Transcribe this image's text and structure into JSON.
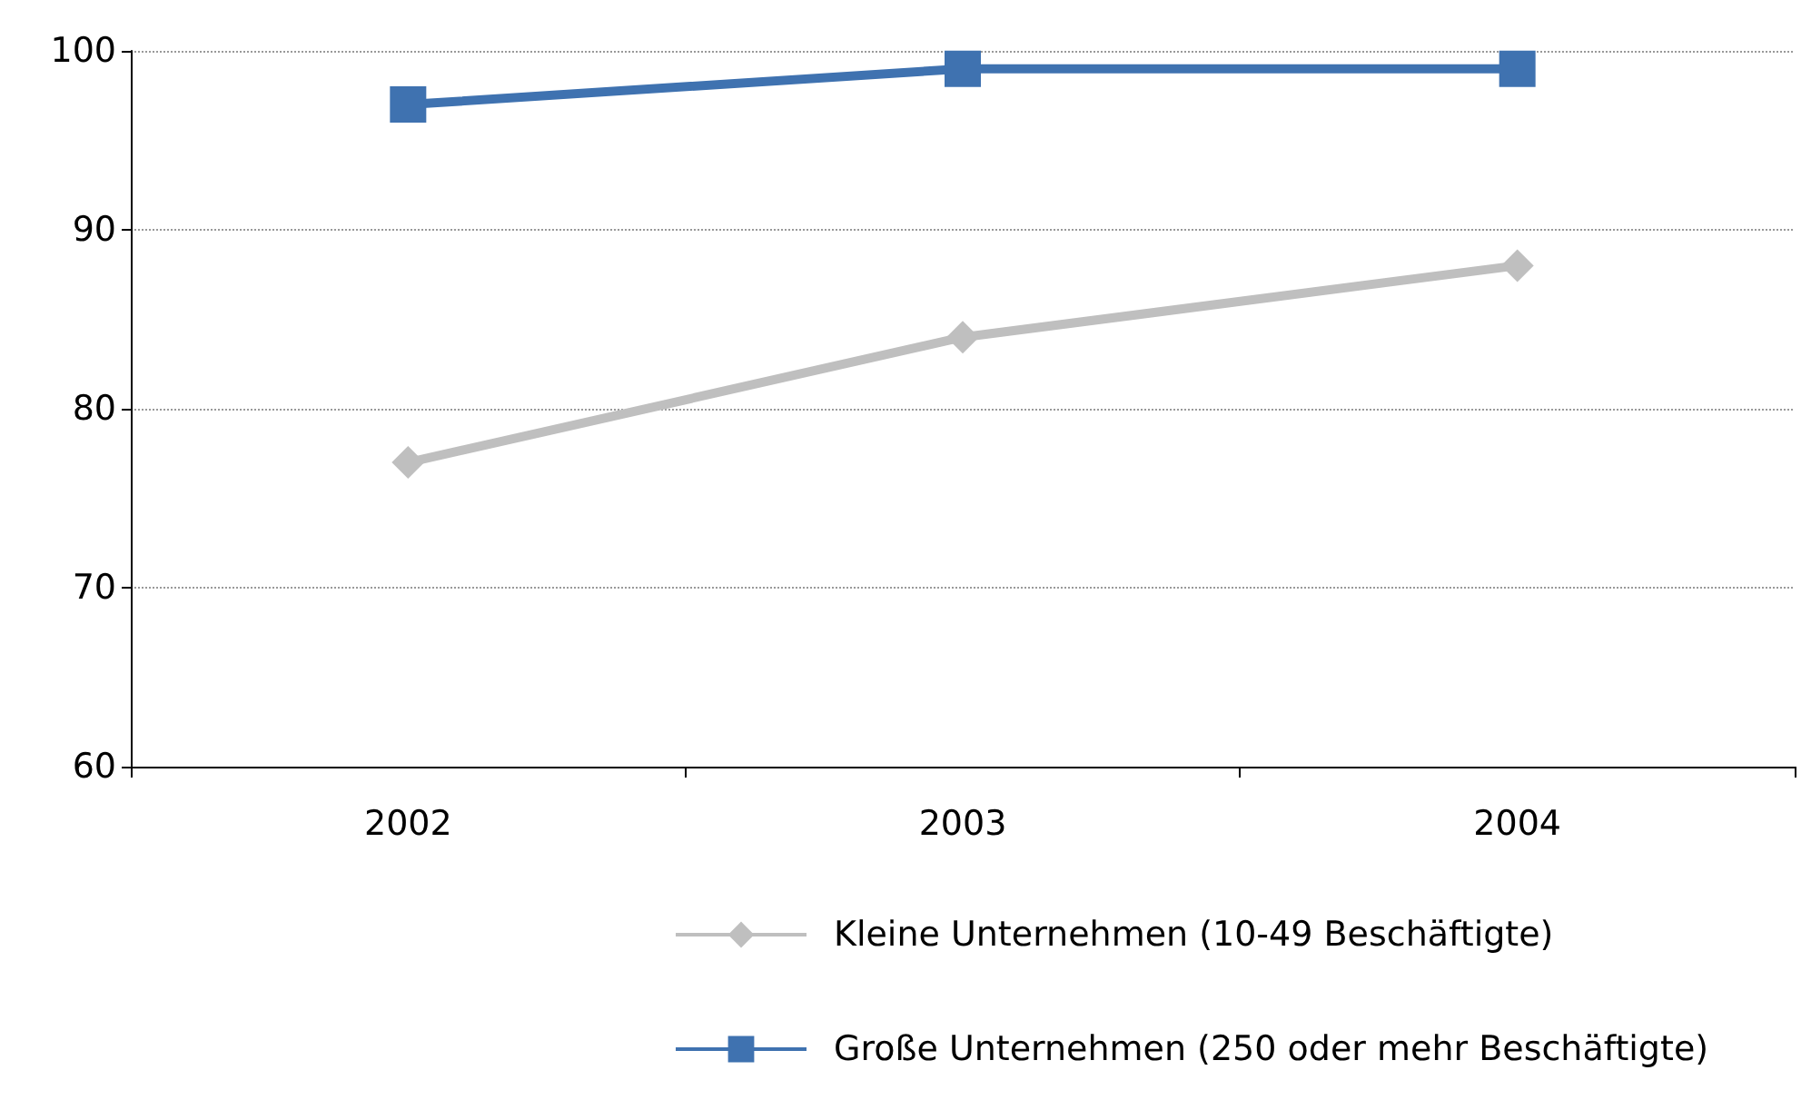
{
  "chart_data": {
    "type": "line",
    "categories": [
      "2002",
      "2003",
      "2004"
    ],
    "series": [
      {
        "name": "Kleine Unternehmen (10-49 Beschäftigte)",
        "color": "#bfbfbf",
        "marker": "diamond",
        "values": [
          77,
          84,
          88
        ]
      },
      {
        "name": "Große Unternehmen (250 oder mehr Beschäftigte)",
        "color": "#3f72b0",
        "marker": "square",
        "values": [
          97,
          99,
          99
        ]
      }
    ],
    "ylim": [
      60,
      100
    ],
    "yticks": [
      60,
      70,
      80,
      90,
      100
    ],
    "grid": "y",
    "legend": "bottom"
  }
}
